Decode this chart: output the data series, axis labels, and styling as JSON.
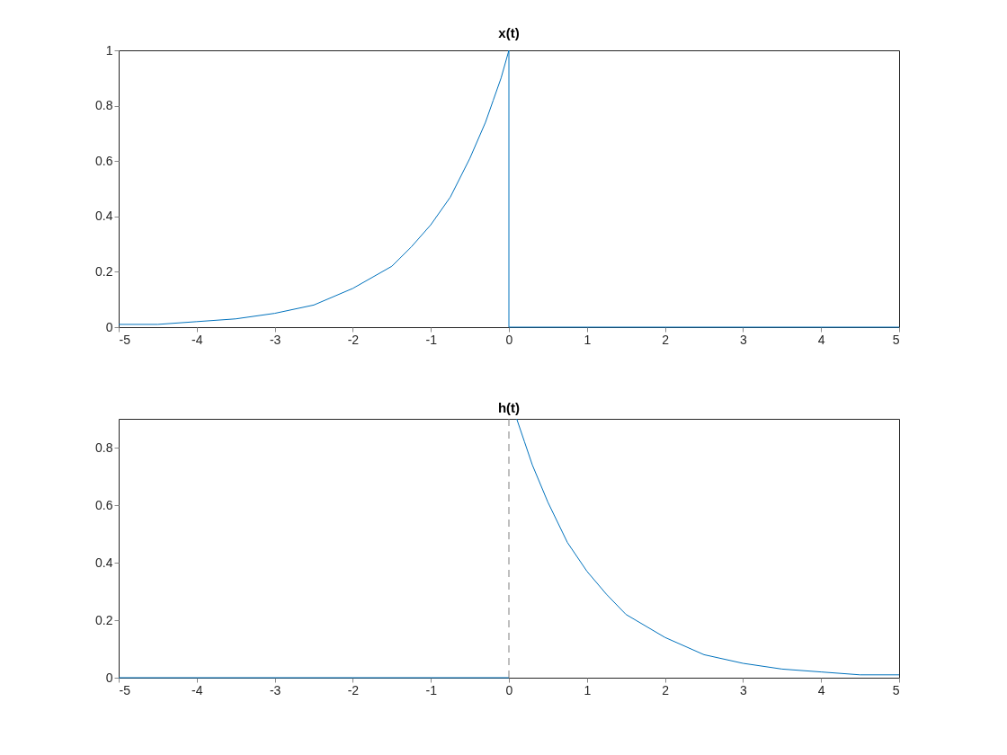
{
  "chart_data": [
    {
      "type": "line",
      "title": "x(t)",
      "xlim": [
        -5,
        5
      ],
      "xticks": [
        -5,
        -4,
        -3,
        -2,
        -1,
        0,
        1,
        2,
        3,
        4,
        5
      ],
      "ylim": [
        0,
        1
      ],
      "yticks": [
        0,
        0.2,
        0.4,
        0.6,
        0.8,
        1
      ],
      "grid": false,
      "legend": false,
      "series": [
        {
          "color": "#0072bd",
          "x": [
            -5,
            -4.5,
            -4,
            -3.5,
            -3,
            -2.5,
            -2,
            -1.5,
            -1.25,
            -1,
            -0.75,
            -0.5,
            -0.3,
            -0.2,
            -0.1,
            0,
            0,
            5
          ],
          "values": [
            0.01,
            0.01,
            0.02,
            0.03,
            0.05,
            0.08,
            0.14,
            0.22,
            0.29,
            0.37,
            0.47,
            0.61,
            0.74,
            0.82,
            0.9,
            1,
            0,
            0
          ]
        }
      ]
    },
    {
      "type": "line",
      "title": "h(t)",
      "xlim": [
        -5,
        5
      ],
      "xticks": [
        -5,
        -4,
        -3,
        -2,
        -1,
        0,
        1,
        2,
        3,
        4,
        5
      ],
      "ylim": [
        0,
        0.9
      ],
      "yticks": [
        0,
        0.2,
        0.4,
        0.6,
        0.8
      ],
      "grid": false,
      "legend": false,
      "ref_lines": [
        {
          "axis": "x",
          "value": 0,
          "color": "#7f7f7f",
          "line_style": "dashed"
        }
      ],
      "series": [
        {
          "color": "#0072bd",
          "x": [
            -5,
            0,
            0.05,
            0.1,
            0.2,
            0.3,
            0.5,
            0.75,
            1,
            1.25,
            1.5,
            2,
            2.5,
            3,
            3.5,
            4,
            4.5,
            5
          ],
          "values": [
            0,
            0,
            null,
            0.9,
            0.82,
            0.74,
            0.61,
            0.47,
            0.37,
            0.29,
            0.22,
            0.14,
            0.08,
            0.05,
            0.03,
            0.02,
            0.01,
            0.01
          ]
        }
      ]
    }
  ]
}
